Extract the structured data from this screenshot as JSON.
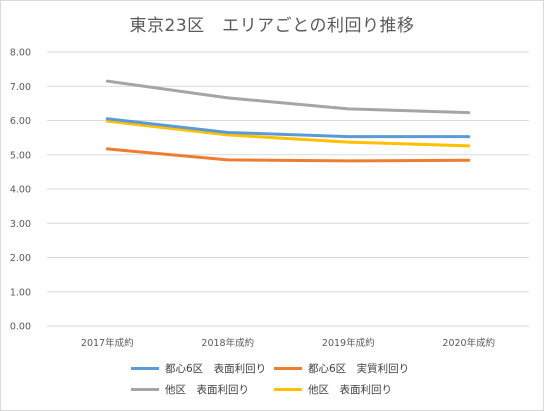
{
  "chart_data": {
    "type": "line",
    "title": "東京23区　エリアごとの利回り推移",
    "xlabel": "",
    "ylabel": "",
    "categories": [
      "2017年成約",
      "2018年成約",
      "2019年成約",
      "2020年成約"
    ],
    "ylim": [
      0,
      8
    ],
    "yticks": [
      "0.00",
      "1.00",
      "2.00",
      "3.00",
      "4.00",
      "5.00",
      "6.00",
      "7.00",
      "8.00"
    ],
    "grid": true,
    "legend_position": "bottom",
    "series": [
      {
        "name": "都心6区　表面利回り",
        "color": "#5b9bd5",
        "values": [
          6.05,
          5.65,
          5.53,
          5.53
        ]
      },
      {
        "name": "都心6区　実質利回り",
        "color": "#ed7d31",
        "values": [
          5.17,
          4.85,
          4.82,
          4.84
        ]
      },
      {
        "name": "他区　表面利回り",
        "color": "#a5a5a5",
        "values": [
          7.15,
          6.66,
          6.34,
          6.23
        ]
      },
      {
        "name": "他区　表面利回り",
        "color": "#ffc000",
        "values": [
          5.98,
          5.58,
          5.37,
          5.26
        ]
      }
    ]
  }
}
